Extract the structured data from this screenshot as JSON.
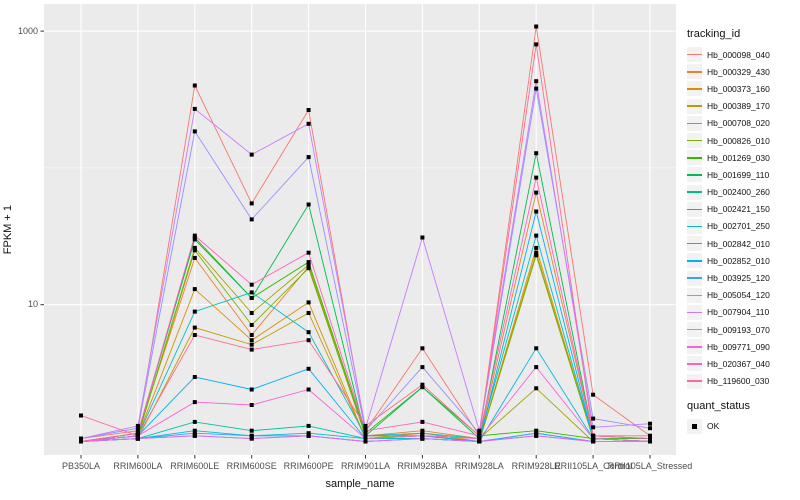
{
  "figure": {
    "background": "#ffffff",
    "panel_background": "#ebebeb",
    "gridline_color": "#ffffff",
    "tick_color": "#333333",
    "tick_label_color": "#4d4d4d",
    "marker_color": "#000000"
  },
  "chart_data": {
    "type": "line",
    "title": "",
    "xlabel": "sample_name",
    "ylabel": "FPKM + 1",
    "y_scale": "log10",
    "y_tick_labels": [
      "1000",
      "10"
    ],
    "y_ticks": [
      1000,
      10
    ],
    "y_minor_breaks": [
      100
    ],
    "ylim": [
      1,
      1200
    ],
    "grid": true,
    "legend_position": "right",
    "legend": {
      "color_title": "tracking_id",
      "shape_title": "quant_status",
      "shape_items": [
        {
          "label": "OK",
          "shape": "filled-square",
          "color": "#000000"
        }
      ]
    },
    "marker": {
      "shape": "square",
      "size": 4,
      "color": "#000000"
    },
    "categories": [
      "PB350LA",
      "RRIM600LA",
      "RRIM600LE",
      "RRIM600SE",
      "RRIM600PE",
      "RRIM901LA",
      "RRIM928BA",
      "RRIM928LA",
      "RRIM928LE",
      "RRII105LA_Control",
      "RRII105LA_Stressed"
    ],
    "series": [
      {
        "name": "Hb_000098_040",
        "color": "#F8766D",
        "values": [
          1.05,
          1.2,
          400,
          55,
          265,
          1.2,
          4.8,
          1.1,
          1080,
          2.2,
          1.1
        ]
      },
      {
        "name": "Hb_000329_430",
        "color": "#EA8331",
        "values": [
          1.0,
          1.15,
          22,
          6.0,
          19,
          1.1,
          1.2,
          1.05,
          66,
          1.1,
          1.05
        ]
      },
      {
        "name": "Hb_000373_160",
        "color": "#D89000",
        "values": [
          1.0,
          1.1,
          13,
          5.5,
          10.4,
          1.05,
          1.15,
          1.0,
          26,
          1.05,
          1.0
        ]
      },
      {
        "name": "Hb_000389_170",
        "color": "#C09B00",
        "values": [
          1.0,
          1.05,
          6.8,
          5.1,
          8.7,
          1.05,
          1.1,
          1.0,
          24,
          1.05,
          1.0
        ]
      },
      {
        "name": "Hb_000708_020",
        "color": "#A3A500",
        "values": [
          1.0,
          1.1,
          26,
          8.7,
          19.5,
          1.1,
          1.1,
          1.05,
          2.45,
          1.0,
          1.0
        ]
      },
      {
        "name": "Hb_000826_010",
        "color": "#7CAE00",
        "values": [
          1.0,
          1.1,
          25,
          7.1,
          18.5,
          1.1,
          1.1,
          1.0,
          23,
          1.05,
          1.0
        ]
      },
      {
        "name": "Hb_001269_030",
        "color": "#39B600",
        "values": [
          1.0,
          1.15,
          31,
          11.2,
          20.5,
          1.15,
          2.5,
          1.1,
          1.2,
          1.05,
          1.05
        ]
      },
      {
        "name": "Hb_001699_110",
        "color": "#00BB4E",
        "values": [
          1.0,
          1.15,
          30,
          11.2,
          54,
          1.1,
          2.5,
          1.05,
          128,
          1.1,
          1.05
        ]
      },
      {
        "name": "Hb_002400_260",
        "color": "#00BF7D",
        "values": [
          1.0,
          1.05,
          1.1,
          1.05,
          1.1,
          1.0,
          1.05,
          1.0,
          1.1,
          1.0,
          1.0
        ]
      },
      {
        "name": "Hb_002421_150",
        "color": "#00C1A3",
        "values": [
          1.0,
          1.05,
          1.39,
          1.2,
          1.3,
          1.05,
          1.05,
          1.0,
          1.15,
          1.0,
          1.0
        ]
      },
      {
        "name": "Hb_002701_250",
        "color": "#00BFC4",
        "values": [
          1.0,
          1.1,
          8.9,
          12.3,
          6.3,
          1.1,
          1.15,
          1.05,
          32,
          1.05,
          1.0
        ]
      },
      {
        "name": "Hb_002842_010",
        "color": "#00BAE0",
        "values": [
          1.0,
          1.05,
          1.2,
          1.1,
          1.15,
          1.05,
          1.05,
          1.0,
          4.8,
          1.05,
          1.0
        ]
      },
      {
        "name": "Hb_002852_010",
        "color": "#00B0F6",
        "values": [
          1.0,
          1.1,
          2.96,
          2.4,
          3.4,
          1.05,
          1.1,
          1.0,
          48,
          1.05,
          1.0
        ]
      },
      {
        "name": "Hb_003925_120",
        "color": "#35A2FF",
        "values": [
          1.0,
          1.05,
          1.15,
          1.1,
          1.1,
          1.0,
          1.05,
          1.0,
          1.15,
          1.0,
          1.0
        ]
      },
      {
        "name": "Hb_005054_120",
        "color": "#9590FF",
        "values": [
          1.05,
          1.25,
          185,
          42,
          120,
          1.2,
          3.5,
          1.15,
          380,
          1.47,
          1.25
        ]
      },
      {
        "name": "Hb_007904_110",
        "color": "#C77CFF",
        "values": [
          1.05,
          1.3,
          270,
          125,
          210,
          1.25,
          31,
          1.2,
          430,
          1.27,
          1.35
        ]
      },
      {
        "name": "Hb_009193_070",
        "color": "#E76BF3",
        "values": [
          1.0,
          1.05,
          1.1,
          1.05,
          1.1,
          1.0,
          1.05,
          1.0,
          1.1,
          1.0,
          1.0
        ]
      },
      {
        "name": "Hb_009771_090",
        "color": "#FA62DB",
        "values": [
          1.0,
          1.1,
          1.94,
          1.85,
          2.4,
          1.05,
          1.1,
          1.05,
          3.5,
          1.05,
          1.0
        ]
      },
      {
        "name": "Hb_020367_040",
        "color": "#FF62BC",
        "values": [
          1.0,
          1.15,
          32,
          14,
          24,
          1.2,
          1.39,
          1.1,
          85,
          1.1,
          1.05
        ]
      },
      {
        "name": "Hb_119600_030",
        "color": "#FF6A98",
        "values": [
          1.55,
          1.1,
          6.0,
          4.7,
          5.5,
          1.3,
          2.6,
          1.1,
          800,
          1.1,
          1.1
        ]
      }
    ]
  }
}
